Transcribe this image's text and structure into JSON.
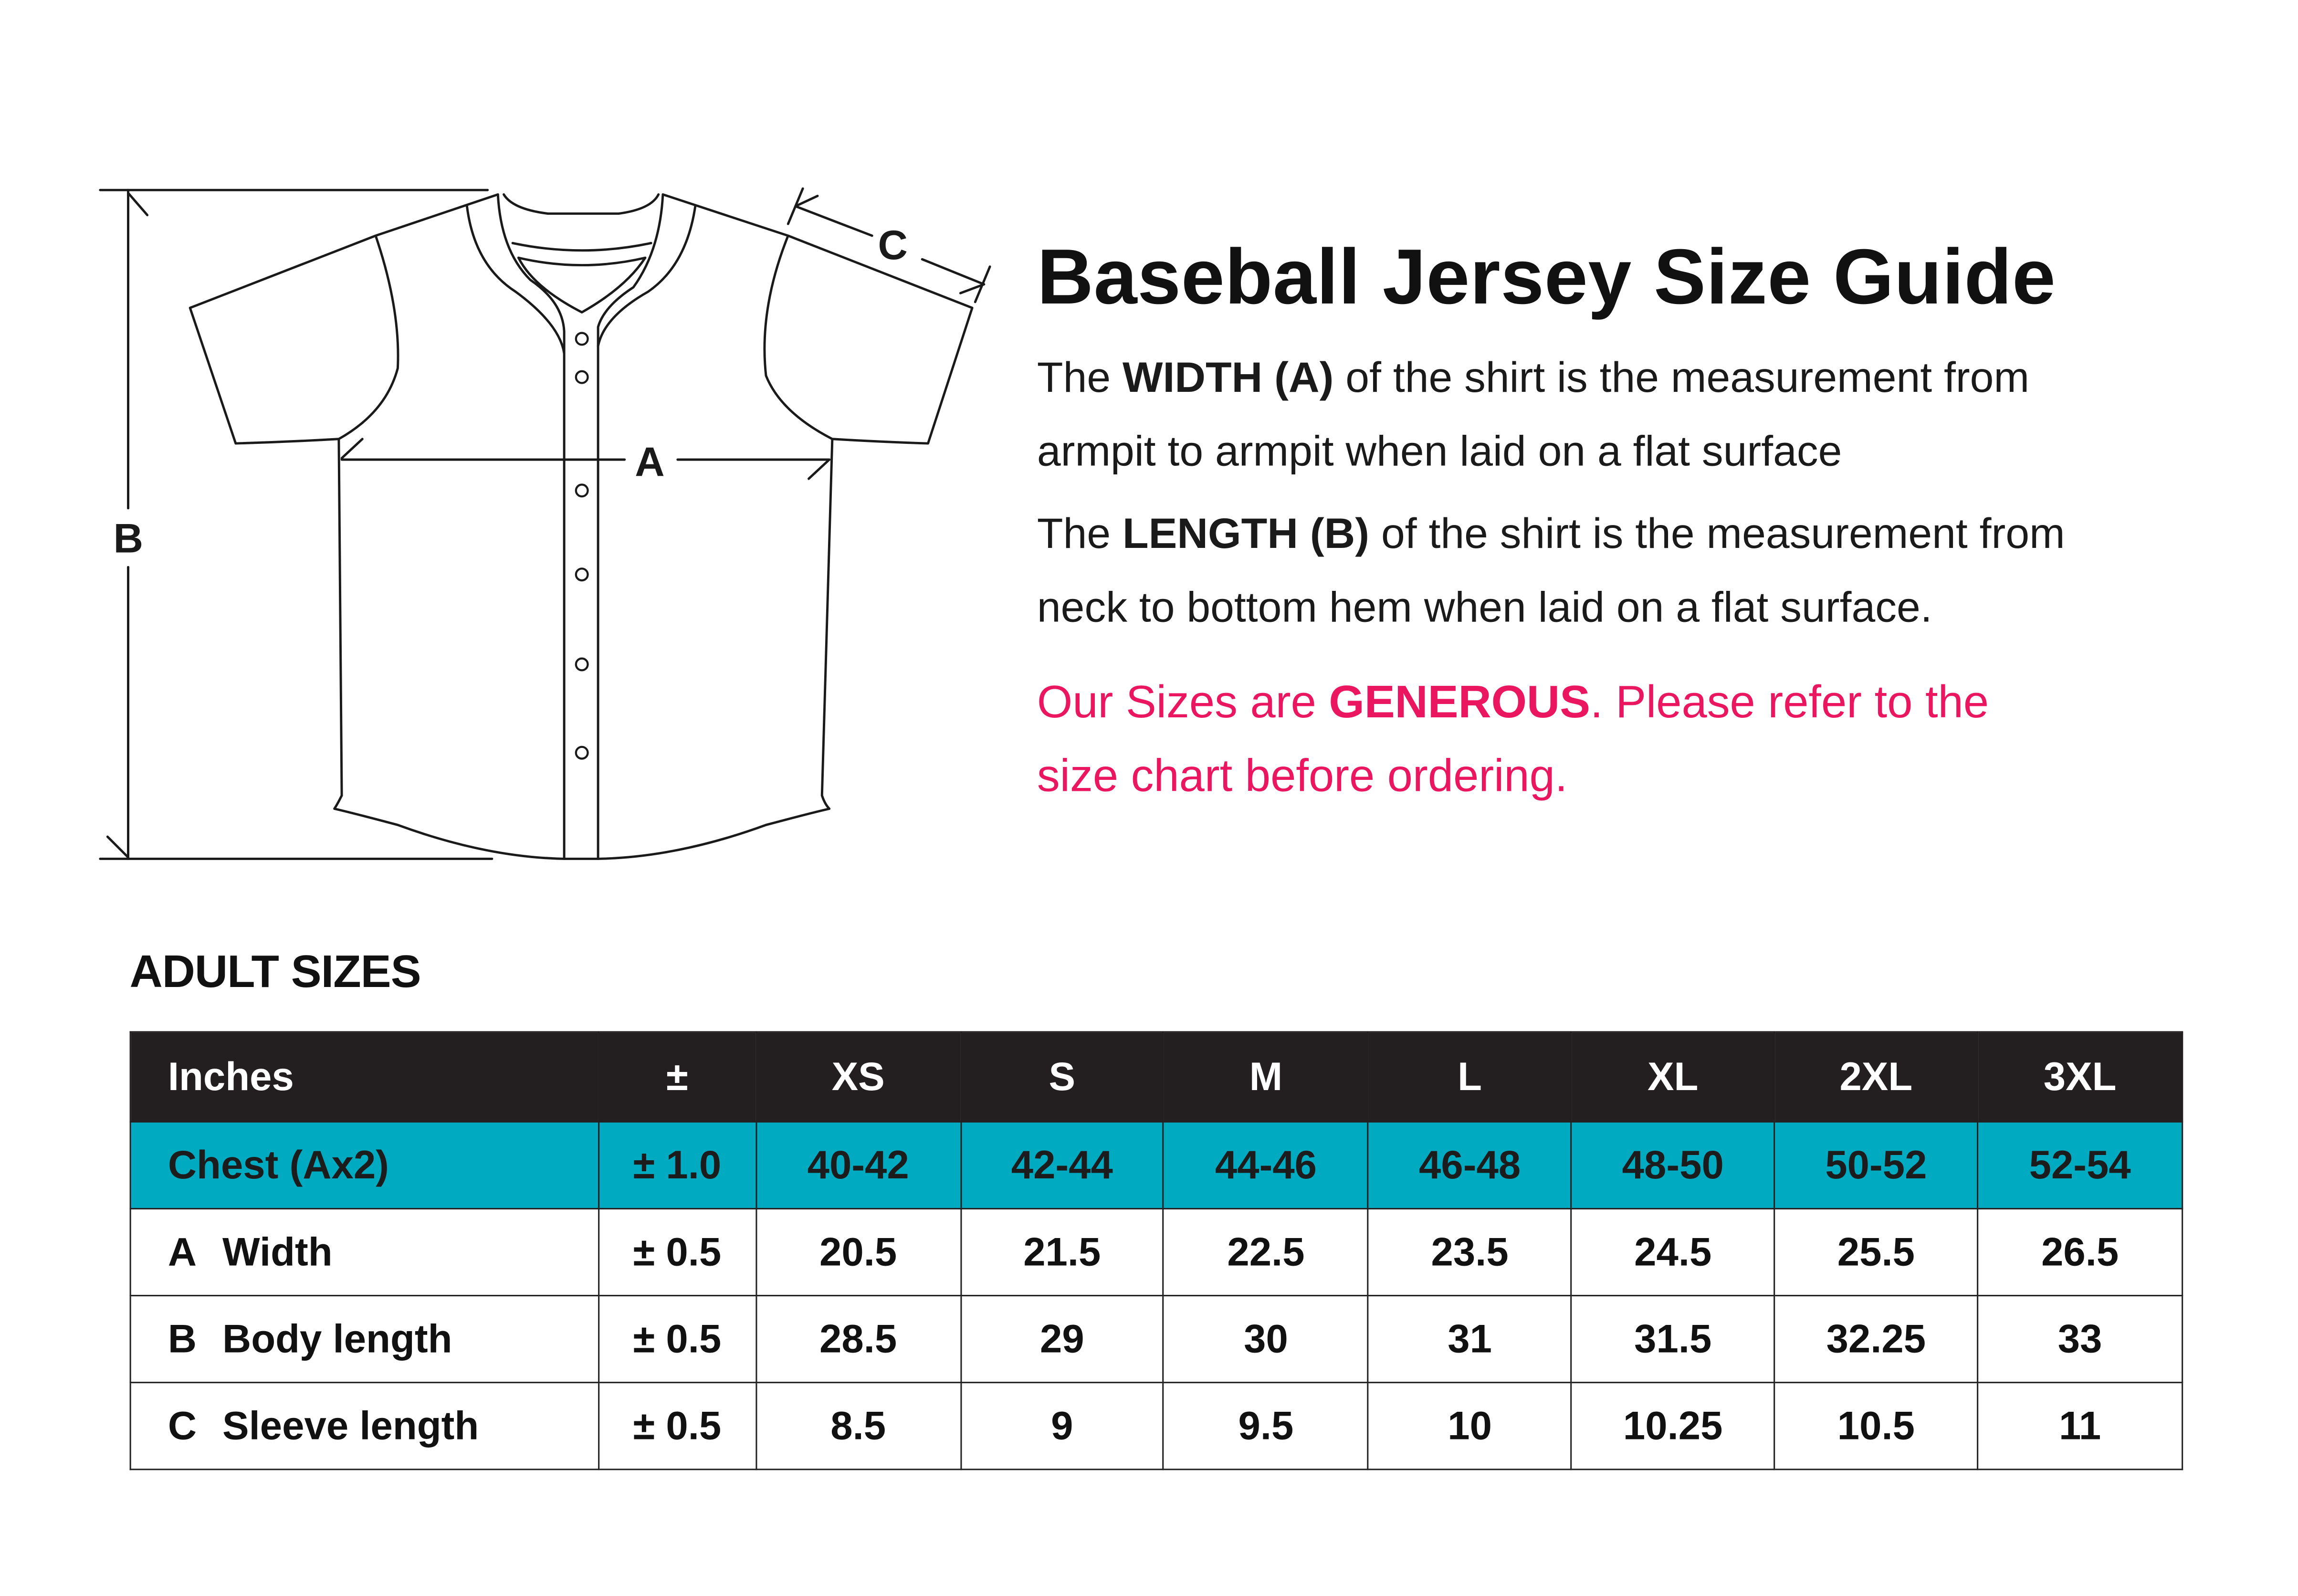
{
  "diagram": {
    "label_a": "A",
    "label_b": "B",
    "label_c": "C"
  },
  "title": "Baseball Jersey Size Guide",
  "width_text": {
    "pre": "The ",
    "bold": "WIDTH (A)",
    "post": " of the shirt is the measurement from",
    "line2": "armpit to armpit when laid on a flat surface"
  },
  "length_text": {
    "pre": "The ",
    "bold": "LENGTH (B)",
    "post": " of the shirt is the measurement from",
    "line2": "neck to bottom hem when laid on a flat surface."
  },
  "note": {
    "pre": "Our Sizes are ",
    "bold": "GENEROUS",
    "post": ". Please refer to the",
    "line2": "size chart before ordering."
  },
  "section_title": "ADULT SIZES",
  "colors": {
    "header_bg": "#231f20",
    "chest_bg": "#00abc2",
    "note": "#ea1660"
  },
  "table": {
    "headers": [
      "Inches",
      "±",
      "XS",
      "S",
      "M",
      "L",
      "XL",
      "2XL",
      "3XL"
    ],
    "rows": [
      {
        "letter": "",
        "label": "Chest (Ax2)",
        "tol": "± 1.0",
        "values": [
          "40-42",
          "42-44",
          "44-46",
          "46-48",
          "48-50",
          "50-52",
          "52-54"
        ]
      },
      {
        "letter": "A",
        "label": "Width",
        "tol": "± 0.5",
        "values": [
          "20.5",
          "21.5",
          "22.5",
          "23.5",
          "24.5",
          "25.5",
          "26.5"
        ]
      },
      {
        "letter": "B",
        "label": "Body length",
        "tol": "± 0.5",
        "values": [
          "28.5",
          "29",
          "30",
          "31",
          "31.5",
          "32.25",
          "33"
        ]
      },
      {
        "letter": "C",
        "label": "Sleeve length",
        "tol": "± 0.5",
        "values": [
          "8.5",
          "9",
          "9.5",
          "10",
          "10.25",
          "10.5",
          "11"
        ]
      }
    ]
  }
}
